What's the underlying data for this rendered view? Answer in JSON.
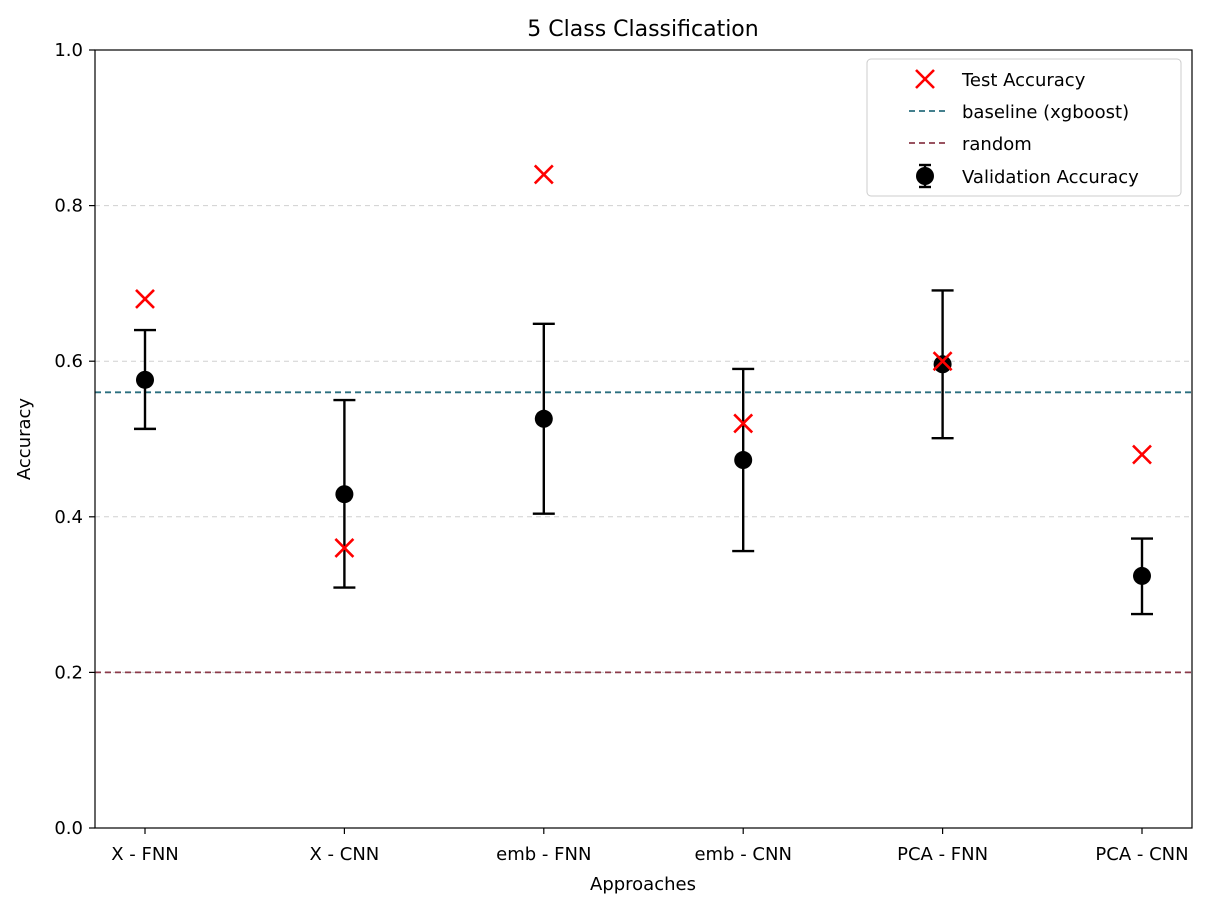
{
  "chart_data": {
    "type": "scatter",
    "title": "5 Class Classification",
    "xlabel": "Approaches",
    "ylabel": "Accuracy",
    "ylim": [
      0.0,
      1.0
    ],
    "yticks": [
      "0.0",
      "0.2",
      "0.4",
      "0.6",
      "0.8",
      "1.0"
    ],
    "ytick_values": [
      0.0,
      0.2,
      0.4,
      0.6,
      0.8,
      1.0
    ],
    "grid": "y-dashed",
    "legend_position": "top-right",
    "categories": [
      "X - FNN",
      "X - CNN",
      "emb - FNN",
      "emb - CNN",
      "PCA - FNN",
      "PCA - CNN"
    ],
    "series": [
      {
        "name": "Test Accuracy",
        "marker": "x",
        "color": "#ff0000",
        "values": [
          0.68,
          0.36,
          0.84,
          0.52,
          0.6,
          0.48
        ]
      },
      {
        "name": "Validation Accuracy",
        "marker": "circle",
        "color": "#000000",
        "values": [
          0.576,
          0.429,
          0.526,
          0.473,
          0.596,
          0.324
        ],
        "error_low": [
          0.513,
          0.309,
          0.404,
          0.356,
          0.501,
          0.275
        ],
        "error_high": [
          0.64,
          0.55,
          0.648,
          0.59,
          0.691,
          0.372
        ]
      }
    ],
    "reference_lines": [
      {
        "name": "baseline (xgboost)",
        "value": 0.56,
        "color": "#2a6f7f",
        "style": "dashed"
      },
      {
        "name": "random",
        "value": 0.2,
        "color": "#8b3a4a",
        "style": "dashed"
      }
    ]
  }
}
